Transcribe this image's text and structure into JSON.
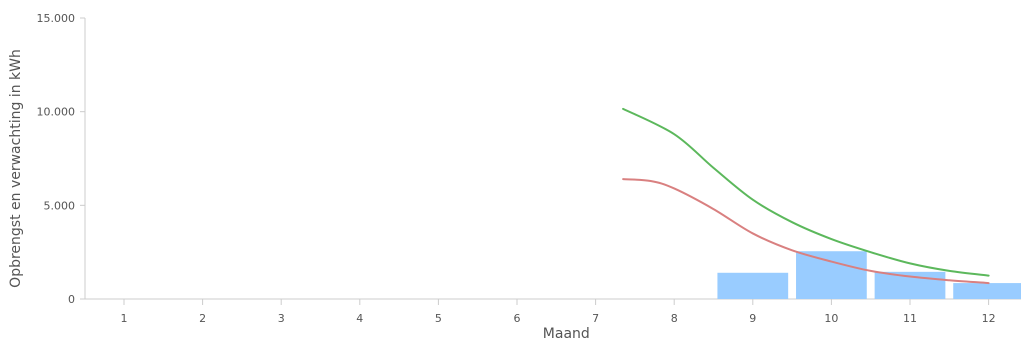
{
  "chart_data": {
    "type": "bar",
    "title": "",
    "xlabel": "Maand",
    "ylabel": "Opbrengst en verwachting in kWh",
    "categories": [
      "1",
      "2",
      "3",
      "4",
      "5",
      "6",
      "7",
      "8",
      "9",
      "10",
      "11",
      "12"
    ],
    "ylim": [
      0,
      15000
    ],
    "yticks": [
      0,
      5000,
      10000,
      15000
    ],
    "ytick_labels": [
      "0",
      "5.000",
      "10.000",
      "15.000"
    ],
    "grid": false,
    "legend": "none",
    "series": [
      {
        "type": "bar",
        "color": "#99ccff",
        "x": [
          9,
          10,
          11,
          12
        ],
        "values": [
          1400,
          2550,
          1450,
          850
        ]
      },
      {
        "type": "line",
        "color": "#5cb85c",
        "x": [
          7.35,
          8,
          8.5,
          9,
          9.5,
          10,
          10.5,
          11,
          11.5,
          12
        ],
        "values": [
          10150,
          8800,
          7000,
          5300,
          4100,
          3200,
          2500,
          1900,
          1500,
          1250
        ]
      },
      {
        "type": "line",
        "color": "#d98080",
        "x": [
          7.35,
          7.7,
          8,
          8.5,
          9,
          9.5,
          10,
          10.5,
          11,
          11.5,
          12
        ],
        "values": [
          6400,
          6300,
          5900,
          4800,
          3500,
          2600,
          2000,
          1500,
          1200,
          1000,
          850
        ]
      }
    ]
  }
}
